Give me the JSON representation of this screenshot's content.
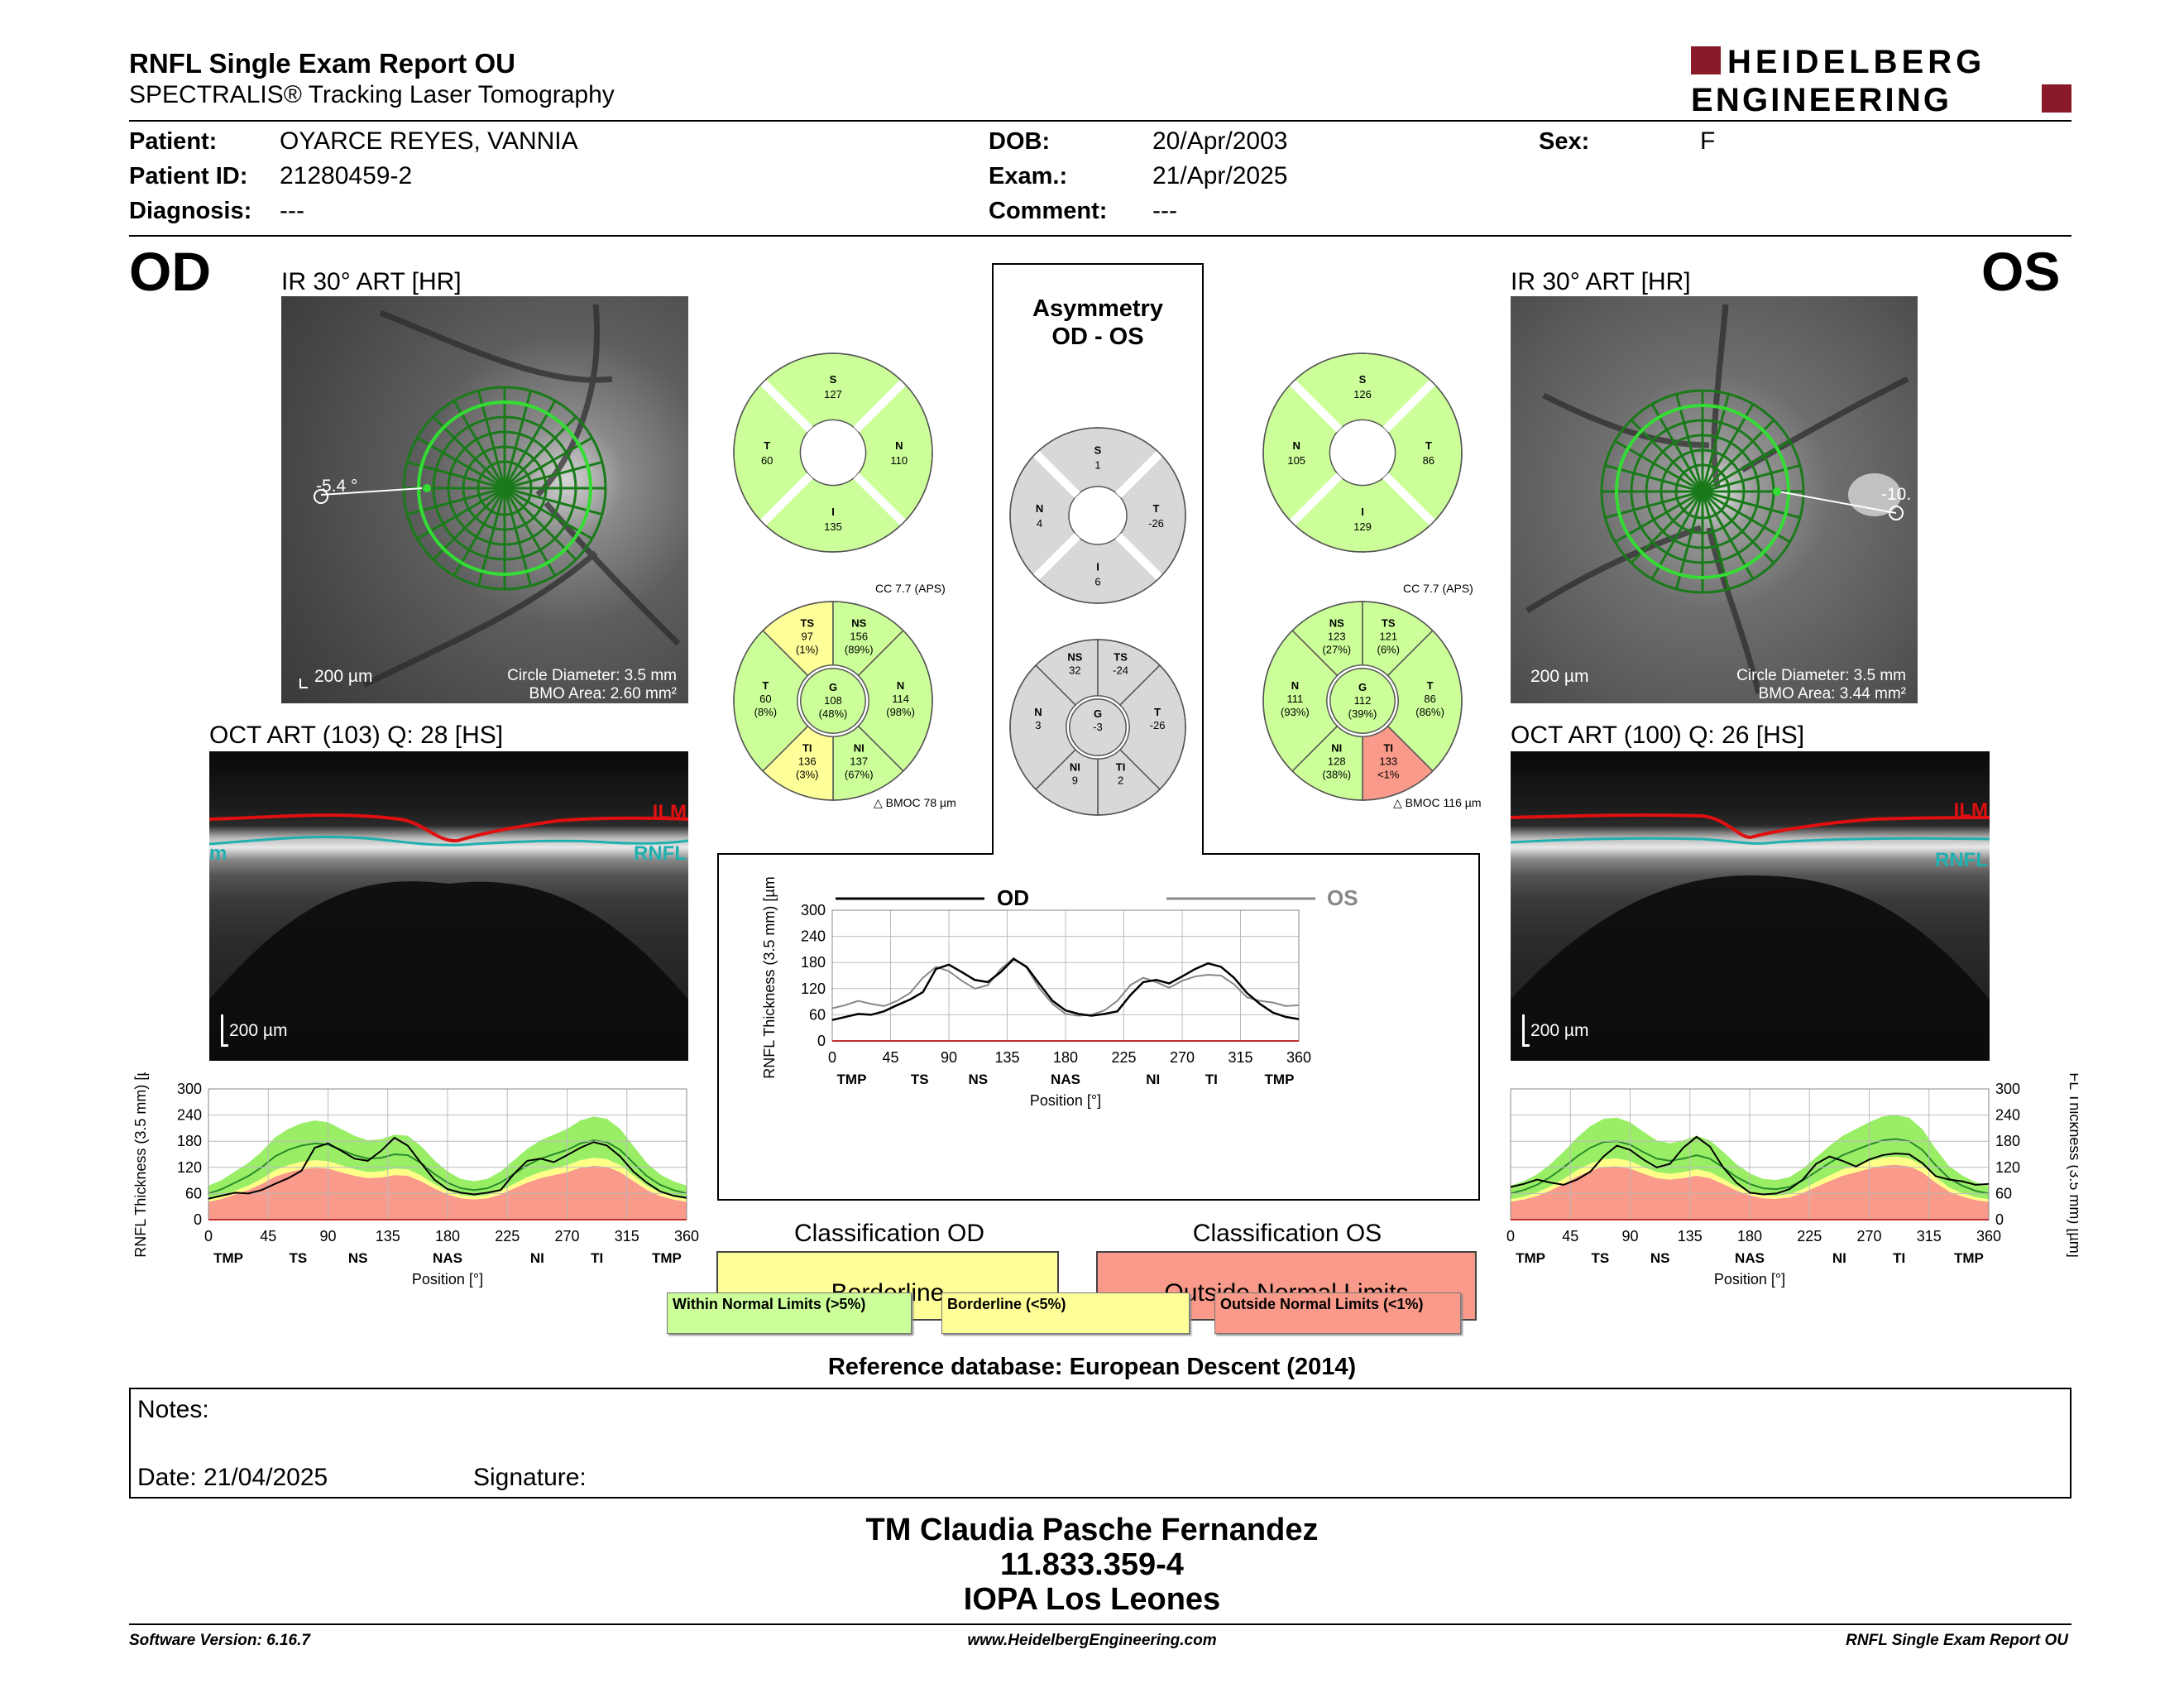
{
  "header": {
    "title": "RNFL Single Exam Report OU",
    "subtitle": "SPECTRALIS® Tracking Laser Tomography",
    "logo_line1": "HEIDELBERG",
    "logo_line2": "ENGINEERING",
    "brand_color": "#8a1a2a"
  },
  "patient": {
    "name_label": "Patient:",
    "name": "OYARCE REYES, VANNIA",
    "id_label": "Patient ID:",
    "id": "21280459-2",
    "diagnosis_label": "Diagnosis:",
    "diagnosis": "---",
    "dob_label": "DOB:",
    "dob": "20/Apr/2003",
    "exam_label": "Exam.:",
    "exam": "21/Apr/2025",
    "comment_label": "Comment:",
    "comment": "---",
    "sex_label": "Sex:",
    "sex": "F"
  },
  "od": {
    "eye": "OD",
    "ir_title": "IR 30° ART [HR]",
    "ir_angle": "-5.4 °",
    "ir_scale": "200 µm",
    "circle_diameter": "Circle Diameter: 3.5 mm",
    "bmo_area": "BMO Area: 2.60 mm²",
    "oct_title": "OCT ART (103) Q: 28 [HS]",
    "oct_scale": "200 µm",
    "ilm": "ILM",
    "rnfl": "RNFL",
    "rnfl_left_stub": "m",
    "cc": "CC 7.7 (APS)",
    "bmoc": "BMOC 78 µm",
    "classification_title": "Classification OD",
    "classification": "Borderline",
    "classification_color": "#ffff99",
    "pie4": {
      "S": {
        "label": "S",
        "value": "127"
      },
      "T": {
        "label": "T",
        "value": "60"
      },
      "N": {
        "label": "N",
        "value": "110"
      },
      "I": {
        "label": "I",
        "value": "135"
      }
    },
    "pie6": {
      "TS": {
        "label": "TS",
        "value": "97",
        "pct": "(1%)",
        "color": "#ffff99"
      },
      "NS": {
        "label": "NS",
        "value": "156",
        "pct": "(89%)",
        "color": "#ccff99"
      },
      "T": {
        "label": "T",
        "value": "60",
        "pct": "(8%)",
        "color": "#ccff99"
      },
      "N": {
        "label": "N",
        "value": "114",
        "pct": "(98%)",
        "color": "#ccff99"
      },
      "TI": {
        "label": "TI",
        "value": "136",
        "pct": "(3%)",
        "color": "#ffff99"
      },
      "NI": {
        "label": "NI",
        "value": "137",
        "pct": "(67%)",
        "color": "#ccff99"
      },
      "G": {
        "label": "G",
        "value": "108",
        "pct": "(48%)",
        "color": "#ccff99"
      }
    }
  },
  "os": {
    "eye": "OS",
    "ir_title": "IR 30° ART [HR]",
    "ir_angle": "-10.",
    "ir_scale": "200 µm",
    "circle_diameter": "Circle Diameter: 3.5 mm",
    "bmo_area": "BMO Area: 3.44 mm²",
    "oct_title": "OCT ART (100) Q: 26 [HS]",
    "oct_scale": "200 µm",
    "ilm": "ILM",
    "rnfl": "RNFL",
    "cc": "CC 7.7 (APS)",
    "bmoc": "BMOC 116 µm",
    "classification_title": "Classification OS",
    "classification": "Outside Normal Limits",
    "classification_color": "#f99a8a",
    "pie4": {
      "S": {
        "label": "S",
        "value": "126"
      },
      "N": {
        "label": "N",
        "value": "105"
      },
      "T": {
        "label": "T",
        "value": "86"
      },
      "I": {
        "label": "I",
        "value": "129"
      }
    },
    "pie6": {
      "NS": {
        "label": "NS",
        "value": "123",
        "pct": "(27%)",
        "color": "#ccff99"
      },
      "TS": {
        "label": "TS",
        "value": "121",
        "pct": "(6%)",
        "color": "#ccff99"
      },
      "N": {
        "label": "N",
        "value": "111",
        "pct": "(93%)",
        "color": "#ccff99"
      },
      "T": {
        "label": "T",
        "value": "86",
        "pct": "(86%)",
        "color": "#ccff99"
      },
      "NI": {
        "label": "NI",
        "value": "128",
        "pct": "(38%)",
        "color": "#ccff99"
      },
      "TI": {
        "label": "TI",
        "value": "133",
        "pct": "<1%",
        "color": "#f99a8a"
      },
      "G": {
        "label": "G",
        "value": "112",
        "pct": "(39%)",
        "color": "#ccff99"
      }
    }
  },
  "asym": {
    "title1": "Asymmetry",
    "title2": "OD - OS",
    "pie4": {
      "S": {
        "label": "S",
        "value": "1"
      },
      "N": {
        "label": "N",
        "value": "4"
      },
      "T": {
        "label": "T",
        "value": "-26"
      },
      "I": {
        "label": "I",
        "value": "6"
      }
    },
    "pie6": {
      "NS": {
        "label": "NS",
        "value": "32"
      },
      "TS": {
        "label": "TS",
        "value": "-24"
      },
      "N": {
        "label": "N",
        "value": "3"
      },
      "T": {
        "label": "T",
        "value": "-26"
      },
      "NI": {
        "label": "NI",
        "value": "9"
      },
      "TI": {
        "label": "TI",
        "value": "2"
      },
      "G": {
        "label": "G",
        "value": "-3"
      }
    }
  },
  "chart_data": [
    {
      "type": "line",
      "name": "od_profile",
      "x": [
        0,
        10,
        20,
        30,
        40,
        50,
        60,
        70,
        80,
        90,
        100,
        110,
        120,
        130,
        140,
        150,
        160,
        170,
        180,
        190,
        200,
        210,
        220,
        230,
        240,
        250,
        260,
        270,
        280,
        290,
        300,
        310,
        320,
        330,
        340,
        350,
        360
      ],
      "series": [
        {
          "name": "OD",
          "values": [
            48,
            55,
            62,
            60,
            68,
            82,
            95,
            112,
            165,
            175,
            158,
            140,
            135,
            158,
            188,
            170,
            130,
            92,
            70,
            62,
            58,
            62,
            68,
            105,
            135,
            140,
            132,
            148,
            165,
            178,
            170,
            145,
            110,
            85,
            65,
            55,
            50
          ]
        },
        {
          "name": "normal_mean",
          "values": [
            60,
            70,
            85,
            100,
            120,
            145,
            160,
            170,
            175,
            172,
            160,
            148,
            140,
            142,
            150,
            148,
            130,
            105,
            85,
            72,
            68,
            72,
            85,
            105,
            125,
            140,
            150,
            160,
            175,
            182,
            178,
            160,
            130,
            100,
            80,
            68,
            60
          ]
        }
      ],
      "xticks": [
        "0",
        "45",
        "90",
        "135",
        "180",
        "225",
        "270",
        "315",
        "360"
      ],
      "yticks": [
        "0",
        "60",
        "120",
        "180",
        "240",
        "300"
      ],
      "sector_labels": [
        "TMP",
        "TS",
        "NS",
        "NAS",
        "NI",
        "TI",
        "TMP"
      ],
      "xlabel": "Position [°]",
      "ylabel": "RNFL Thickness (3.5 mm) [µm]",
      "xlim": [
        0,
        360
      ],
      "ylim": [
        0,
        300
      ]
    },
    {
      "type": "line",
      "name": "comparison",
      "x": [
        0,
        10,
        20,
        30,
        40,
        50,
        60,
        70,
        80,
        90,
        100,
        110,
        120,
        130,
        140,
        150,
        160,
        170,
        180,
        190,
        200,
        210,
        220,
        230,
        240,
        250,
        260,
        270,
        280,
        290,
        300,
        310,
        320,
        330,
        340,
        350,
        360
      ],
      "series": [
        {
          "name": "OD",
          "values": [
            48,
            55,
            62,
            60,
            68,
            82,
            95,
            112,
            165,
            175,
            158,
            140,
            135,
            158,
            188,
            170,
            130,
            92,
            70,
            62,
            58,
            62,
            68,
            105,
            135,
            140,
            132,
            148,
            165,
            178,
            170,
            145,
            110,
            85,
            65,
            55,
            50
          ]
        },
        {
          "name": "OS",
          "values": [
            75,
            82,
            92,
            85,
            80,
            92,
            110,
            145,
            170,
            160,
            138,
            120,
            128,
            165,
            190,
            168,
            120,
            85,
            62,
            58,
            60,
            70,
            92,
            128,
            145,
            135,
            122,
            138,
            148,
            152,
            150,
            130,
            100,
            92,
            88,
            80,
            82
          ]
        }
      ],
      "xticks": [
        "0",
        "45",
        "90",
        "135",
        "180",
        "225",
        "270",
        "315",
        "360"
      ],
      "yticks": [
        "0",
        "60",
        "120",
        "180",
        "240",
        "300"
      ],
      "sector_labels": [
        "TMP",
        "TS",
        "NS",
        "NAS",
        "NI",
        "TI",
        "TMP"
      ],
      "xlabel": "Position [°]",
      "ylabel": "RNFL Thickness (3.5 mm) [µm]",
      "xlim": [
        0,
        360
      ],
      "ylim": [
        0,
        300
      ]
    },
    {
      "type": "line",
      "name": "os_profile",
      "x": [
        0,
        10,
        20,
        30,
        40,
        50,
        60,
        70,
        80,
        90,
        100,
        110,
        120,
        130,
        140,
        150,
        160,
        170,
        180,
        190,
        200,
        210,
        220,
        230,
        240,
        250,
        260,
        270,
        280,
        290,
        300,
        310,
        320,
        330,
        340,
        350,
        360
      ],
      "series": [
        {
          "name": "OS",
          "values": [
            75,
            82,
            92,
            85,
            80,
            92,
            110,
            145,
            170,
            160,
            138,
            120,
            128,
            165,
            190,
            168,
            120,
            85,
            62,
            58,
            60,
            70,
            92,
            128,
            145,
            135,
            122,
            138,
            148,
            152,
            150,
            130,
            100,
            92,
            88,
            80,
            82
          ]
        },
        {
          "name": "normal_mean",
          "values": [
            60,
            68,
            80,
            98,
            120,
            145,
            165,
            178,
            180,
            172,
            155,
            140,
            135,
            140,
            148,
            140,
            120,
            98,
            82,
            72,
            70,
            75,
            90,
            110,
            130,
            148,
            160,
            172,
            182,
            185,
            180,
            160,
            125,
            95,
            78,
            66,
            60
          ]
        }
      ],
      "xticks": [
        "0",
        "45",
        "90",
        "135",
        "180",
        "225",
        "270",
        "315",
        "360"
      ],
      "yticks": [
        "0",
        "60",
        "120",
        "180",
        "240",
        "300"
      ],
      "sector_labels": [
        "TMP",
        "TS",
        "NS",
        "NAS",
        "NI",
        "TI",
        "TMP"
      ],
      "xlabel": "Position [°]",
      "ylabel": "RNFL Thickness (3.5 mm) [µm]",
      "xlim": [
        0,
        360
      ],
      "ylim": [
        0,
        300
      ]
    }
  ],
  "comparison_legend": {
    "od": "OD",
    "os": "OS"
  },
  "legend": {
    "within": "Within Normal Limits (>5%)",
    "borderline": "Borderline (<5%)",
    "outside": "Outside Normal Limits (<1%)",
    "within_color": "#ccff99",
    "borderline_color": "#ffff99",
    "outside_color": "#f99a8a"
  },
  "reference_db": "Reference database: European Descent (2014)",
  "notes": {
    "notes_label": "Notes:",
    "date_label": "Date: 21/04/2025",
    "signature_label": "Signature:"
  },
  "signature": {
    "line1": "TM Claudia Pasche Fernandez",
    "line2": "11.833.359-4",
    "line3": "IOPA Los Leones"
  },
  "footer": {
    "left": "Software Version: 6.16.7",
    "center": "www.HeidelbergEngineering.com",
    "right": "RNFL Single Exam Report OU"
  }
}
